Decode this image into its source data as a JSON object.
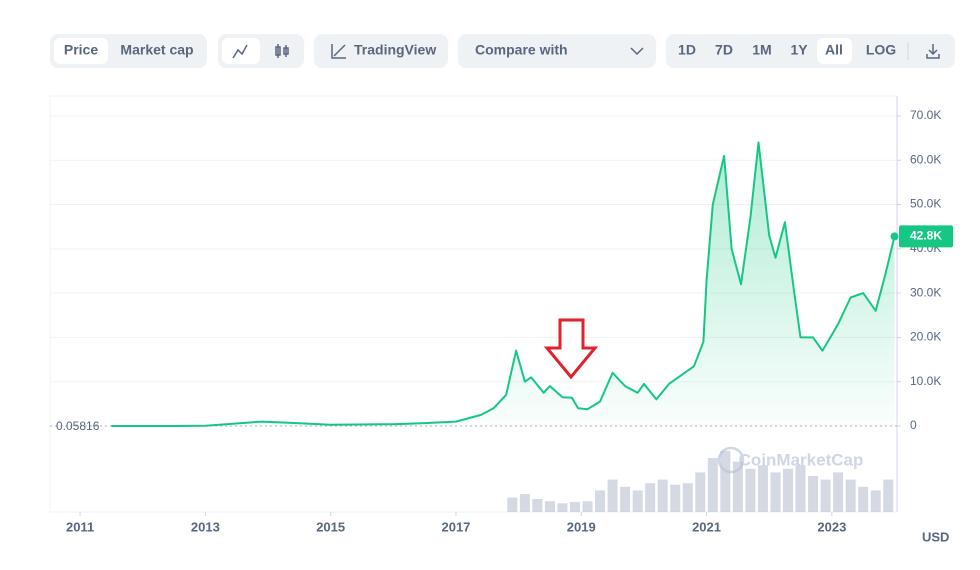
{
  "toolbar": {
    "view_tabs": [
      "Price",
      "Market cap"
    ],
    "chart_tools": [
      "TradingView"
    ],
    "compare": "Compare with",
    "ranges": [
      "1D",
      "7D",
      "1M",
      "1Y",
      "All",
      "LOG"
    ]
  },
  "chart_data": {
    "type": "area",
    "x": [
      2011.5,
      2012.5,
      2013.0,
      2013.9,
      2014.5,
      2015.0,
      2016.0,
      2016.5,
      2017.0,
      2017.4,
      2017.6,
      2017.8,
      2017.96,
      2018.1,
      2018.2,
      2018.4,
      2018.5,
      2018.7,
      2018.85,
      2018.95,
      2019.1,
      2019.3,
      2019.5,
      2019.7,
      2019.9,
      2020.0,
      2020.2,
      2020.4,
      2020.6,
      2020.8,
      2020.95,
      2021.0,
      2021.1,
      2021.28,
      2021.4,
      2021.55,
      2021.7,
      2021.83,
      2022.0,
      2022.1,
      2022.25,
      2022.4,
      2022.5,
      2022.7,
      2022.85,
      2023.1,
      2023.3,
      2023.5,
      2023.7,
      2023.85,
      2024.0
    ],
    "values": [
      0.05816,
      10,
      50,
      1000,
      600,
      300,
      400,
      650,
      1000,
      2500,
      4000,
      7000,
      17000,
      10000,
      11000,
      7500,
      9000,
      6500,
      6400,
      4000,
      3800,
      5500,
      12000,
      9000,
      7500,
      9500,
      6000,
      9500,
      11500,
      13500,
      19000,
      33000,
      50000,
      61000,
      40000,
      32000,
      47000,
      64000,
      43000,
      38000,
      46000,
      30000,
      20000,
      20000,
      17000,
      23000,
      29000,
      30000,
      26000,
      34000,
      42800
    ],
    "value_labels": [
      null,
      null,
      null,
      null,
      null,
      null,
      null,
      null,
      null,
      null,
      null,
      null,
      null,
      null,
      null,
      null,
      null,
      null,
      null,
      null,
      null,
      null,
      null,
      null,
      null,
      null,
      null,
      null,
      null,
      null,
      null,
      null,
      null,
      null,
      null,
      null,
      null,
      null,
      null,
      null,
      null,
      null,
      null,
      null,
      null,
      null,
      null,
      null,
      null,
      null,
      "42.8K"
    ],
    "color": "#16c784",
    "xlim": [
      2010.52,
      2024.04
    ],
    "xticks": [
      2011,
      2013,
      2015,
      2017,
      2019,
      2021,
      2023
    ],
    "ylim": [
      0,
      74500
    ],
    "yticks": [
      0,
      {
        "value": 10000,
        "label": "10.0K"
      },
      {
        "value": 20000,
        "label": "20.0K"
      },
      {
        "value": 30000,
        "label": "30.0K"
      },
      {
        "value": 40000,
        "label": "40.0K"
      },
      {
        "value": 50000,
        "label": "50.0K"
      },
      {
        "value": 60000,
        "label": "60.0K"
      },
      {
        "value": 70000,
        "label": "70.0K"
      }
    ],
    "grid": true,
    "baseline": 0.05816,
    "axis_unit": "USD",
    "watermark": "CoinMarketCap",
    "volume": {
      "color": "#b8c0d0",
      "vlim": [
        0,
        100
      ],
      "x": [
        2017.9,
        2018.1,
        2018.3,
        2018.5,
        2018.7,
        2018.9,
        2019.1,
        2019.3,
        2019.5,
        2019.7,
        2019.9,
        2020.1,
        2020.3,
        2020.5,
        2020.7,
        2020.9,
        2021.1,
        2021.3,
        2021.5,
        2021.7,
        2021.9,
        2022.1,
        2022.3,
        2022.5,
        2022.7,
        2022.9,
        2023.1,
        2023.3,
        2023.5,
        2023.7,
        2023.9
      ],
      "values": [
        20,
        25,
        18,
        15,
        12,
        14,
        15,
        30,
        45,
        35,
        30,
        40,
        45,
        38,
        40,
        55,
        75,
        85,
        70,
        60,
        65,
        55,
        60,
        65,
        50,
        45,
        55,
        45,
        35,
        30,
        45
      ]
    }
  }
}
